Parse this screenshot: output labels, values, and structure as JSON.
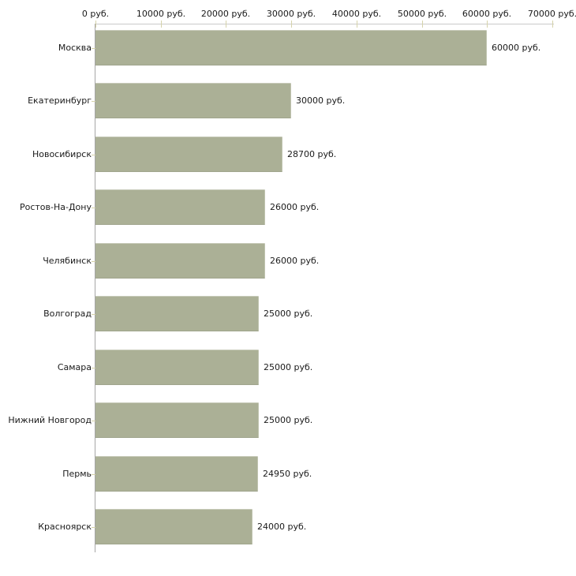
{
  "chart_data": {
    "type": "bar",
    "orientation": "horizontal",
    "title": "",
    "xlabel": "",
    "ylabel": "",
    "xlim": [
      0,
      70000
    ],
    "grid": false,
    "legend": null,
    "unit_suffix": "руб.",
    "categories": [
      "Москва",
      "Екатеринбург",
      "Новосибирск",
      "Ростов-На-Дону",
      "Челябинск",
      "Волгоград",
      "Самара",
      "Нижний Новгород",
      "Пермь",
      "Красноярск"
    ],
    "values": [
      60000,
      30000,
      28700,
      26000,
      26000,
      25000,
      25000,
      25000,
      24950,
      24000
    ],
    "value_labels": [
      "60000 руб.",
      "30000 руб.",
      "28700 руб.",
      "26000 руб.",
      "26000 руб.",
      "25000 руб.",
      "25000 руб.",
      "25000 руб.",
      "24950 руб.",
      "24000 руб."
    ],
    "x_tick_values": [
      0,
      10000,
      20000,
      30000,
      40000,
      50000,
      60000,
      70000
    ],
    "x_tick_labels": [
      "0 руб.",
      "10000 руб.",
      "20000 руб.",
      "30000 руб.",
      "40000 руб.",
      "50000 руб.",
      "60000 руб.",
      "70000 руб."
    ],
    "axis_position": "top",
    "colors": {
      "bar_fill": "#abb096",
      "tick_mark": "#d6d3ab",
      "x_axis_line": "#c9c9c9",
      "y_axis_line": "#a6a6a6",
      "text": "#1a1a1a",
      "background": "#ffffff"
    }
  }
}
